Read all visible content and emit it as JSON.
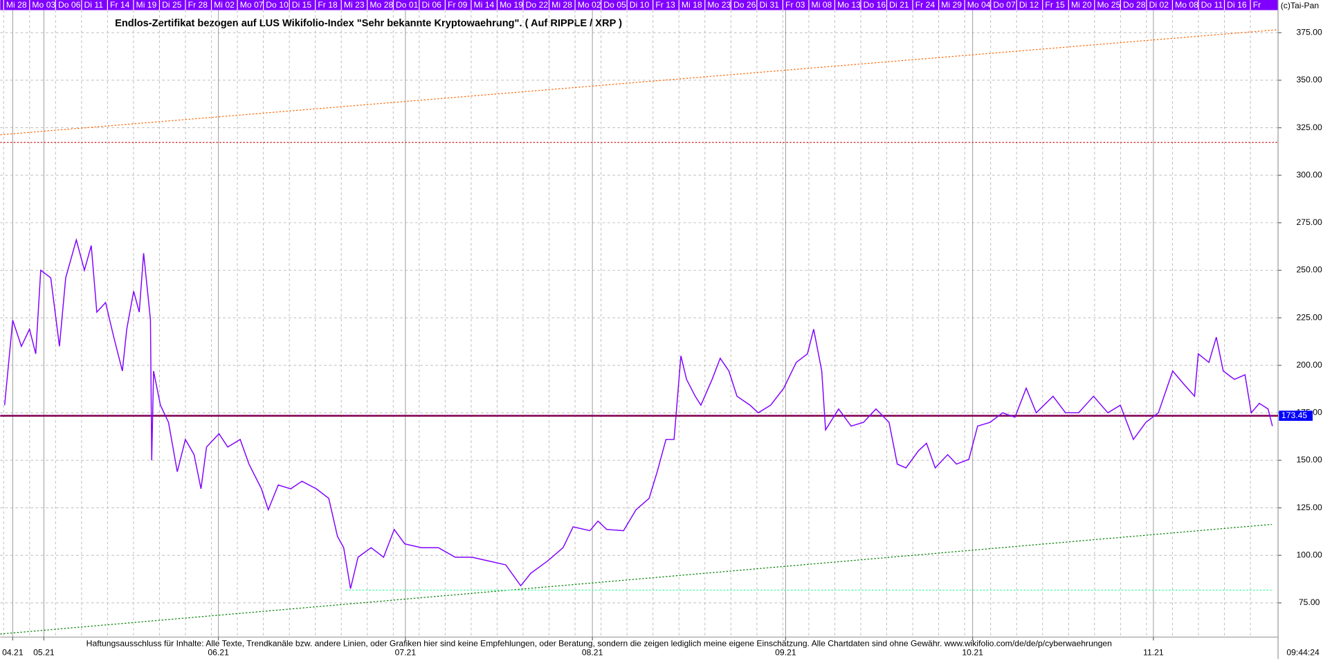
{
  "chart_data": {
    "type": "line",
    "title": "Endlos-Zertifikat bezogen auf LUS Wikifolio-Index \"Sehr bekannte Kryptowaehrung\". ( Auf RIPPLE / XRP )",
    "copyright": "(c)Tai-Pan",
    "disclaimer": "Haftungsausschluss für Inhalte: Alle Texte, Trendkanäle bzw. andere Linien, oder Grafiken hier sind keine Empfehlungen, oder Beratung, sondern die zeigen lediglich meine eigene Einschätzung. Alle Chartdaten sind ohne Gewähr.  www.wikifolio.com/de/de/p/cyberwaehrungen",
    "time": "09:44:24",
    "top_labels": [
      "Mi 28",
      "Mo 03",
      "Do 06",
      "Di 11",
      "Fr 14",
      "Mi 19",
      "Di 25",
      "Fr 28",
      "Mi 02",
      "Mo 07",
      "Do 10",
      "Di 15",
      "Fr 18",
      "Mi 23",
      "Mo 28",
      "Do 01",
      "Di 06",
      "Fr 09",
      "Mi 14",
      "Mo 19",
      "Do 22",
      "Mi 28",
      "Mo 02",
      "Do 05",
      "Di 10",
      "Fr 13",
      "Mi 18",
      "Mo 23",
      "Do 26",
      "Di 31",
      "Fr 03",
      "Mi 08",
      "Mo 13",
      "Do 16",
      "Di 21",
      "Fr 24",
      "Mi 29",
      "Mo 04",
      "Do 07",
      "Di 12",
      "Fr 15",
      "Mi 20",
      "Mo 25",
      "Do 28",
      "Di 02",
      "Mo 08",
      "Do 11",
      "Di 16",
      "Fr"
    ],
    "xlim": [
      0,
      205
    ],
    "xticks": [
      {
        "value": 2,
        "label": "04.21"
      },
      {
        "value": 7,
        "label": "05.21"
      },
      {
        "value": 35,
        "label": "06.21"
      },
      {
        "value": 65,
        "label": "07.21"
      },
      {
        "value": 95,
        "label": "08.21"
      },
      {
        "value": 126,
        "label": "09.21"
      },
      {
        "value": 156,
        "label": "10.21"
      },
      {
        "value": 185,
        "label": "11.21"
      }
    ],
    "ylim": [
      57,
      386
    ],
    "yticks": [
      {
        "value": 75,
        "label": "75.00"
      },
      {
        "value": 100,
        "label": "100.00"
      },
      {
        "value": 125,
        "label": "125.00"
      },
      {
        "value": 150,
        "label": "150.00"
      },
      {
        "value": 175,
        "label": "175.00"
      },
      {
        "value": 200,
        "label": "200.00"
      },
      {
        "value": 225,
        "label": "225.00"
      },
      {
        "value": 250,
        "label": "250.00"
      },
      {
        "value": 275,
        "label": "275.00"
      },
      {
        "value": 300,
        "label": "300.00"
      },
      {
        "value": 325,
        "label": "325.00"
      },
      {
        "value": 350,
        "label": "350.00"
      },
      {
        "value": 375,
        "label": "375.00"
      }
    ],
    "grid": true,
    "series": [
      {
        "color": "#7f00ff",
        "x": [
          0.7,
          2.0,
          3.4,
          4.7,
          5.7,
          6.5,
          8.1,
          9.5,
          10.5,
          12.2,
          13.5,
          14.6,
          15.5,
          16.9,
          18.2,
          19.6,
          20.3,
          21.4,
          22.3,
          23.0,
          24.1,
          24.3,
          24.6,
          25.7,
          27.0,
          28.4,
          29.7,
          31.1,
          32.2,
          33.1,
          35.1,
          36.5,
          38.5,
          39.9,
          41.9,
          43.0,
          44.6,
          46.6,
          48.4,
          50.7,
          52.7,
          54.1,
          55.1,
          56.2,
          57.4,
          59.5,
          61.5,
          63.2,
          64.9,
          67.6,
          70.3,
          73.0,
          75.7,
          78.4,
          81.1,
          83.5,
          85.1,
          87.8,
          90.3,
          91.9,
          94.6,
          95.9,
          97.3,
          100.0,
          102.0,
          104.1,
          105.4,
          106.8,
          108.1,
          109.2,
          110.1,
          111.5,
          112.4,
          114.2,
          115.5,
          116.9,
          118.2,
          120.3,
          121.6,
          123.6,
          125.7,
          127.7,
          129.5,
          130.5,
          131.8,
          132.4,
          134.5,
          136.5,
          138.5,
          140.5,
          142.6,
          143.9,
          145.3,
          147.3,
          148.6,
          150.0,
          152.0,
          153.4,
          155.4,
          156.8,
          158.8,
          160.8,
          162.8,
          164.6,
          166.2,
          168.9,
          170.9,
          173.0,
          175.4,
          177.7,
          179.7,
          181.8,
          183.8,
          185.8,
          188.1,
          189.9,
          191.6,
          192.2,
          193.9,
          195.1,
          196.2,
          198.0,
          199.7,
          200.7,
          202.0,
          203.4,
          204.1
        ],
        "values": [
          179,
          223.7,
          210,
          219,
          206,
          250,
          246,
          210,
          246,
          266,
          250,
          263,
          228,
          233,
          215,
          197,
          219,
          239,
          228,
          259,
          224,
          150,
          197,
          179,
          170,
          144,
          161,
          153,
          135,
          157,
          164,
          157,
          161,
          148,
          135,
          124,
          137,
          135,
          139,
          135,
          130,
          110,
          104,
          82.5,
          99,
          104,
          99,
          113.6,
          106,
          104,
          104,
          99,
          99,
          97,
          95,
          84,
          90.5,
          97,
          104,
          115,
          113,
          118,
          113.6,
          113,
          124,
          130,
          144,
          161,
          161,
          205,
          192.6,
          183.7,
          179,
          192.6,
          203.7,
          197,
          183.7,
          179,
          175,
          179,
          188,
          201.5,
          206,
          219,
          197,
          166,
          177,
          168,
          170,
          177,
          170,
          148,
          146,
          155,
          159,
          146,
          153,
          148,
          150.5,
          168,
          170,
          175,
          172.7,
          188,
          175,
          183.7,
          175,
          175,
          183.7,
          175,
          179,
          161,
          170,
          175,
          197,
          190,
          183.7,
          206,
          201.5,
          214.8,
          197,
          192.6,
          195,
          175,
          180,
          177,
          168
        ]
      }
    ],
    "lines": [
      {
        "color": "#ff6600",
        "x": [
          0,
          205
        ],
        "values": [
          321.3,
          376.6
        ]
      },
      {
        "color": "#cc0000",
        "x": [
          0,
          205
        ],
        "values": [
          317.3,
          317.3
        ]
      },
      {
        "color": "#008000",
        "x": [
          0,
          204
        ],
        "values": [
          58.6,
          116.3
        ]
      },
      {
        "color": "#33ff99",
        "x": [
          55.4,
          204
        ],
        "values": [
          81.7,
          81.7
        ]
      }
    ],
    "last_price": 173.45,
    "last_price_color": "#0000ff"
  }
}
